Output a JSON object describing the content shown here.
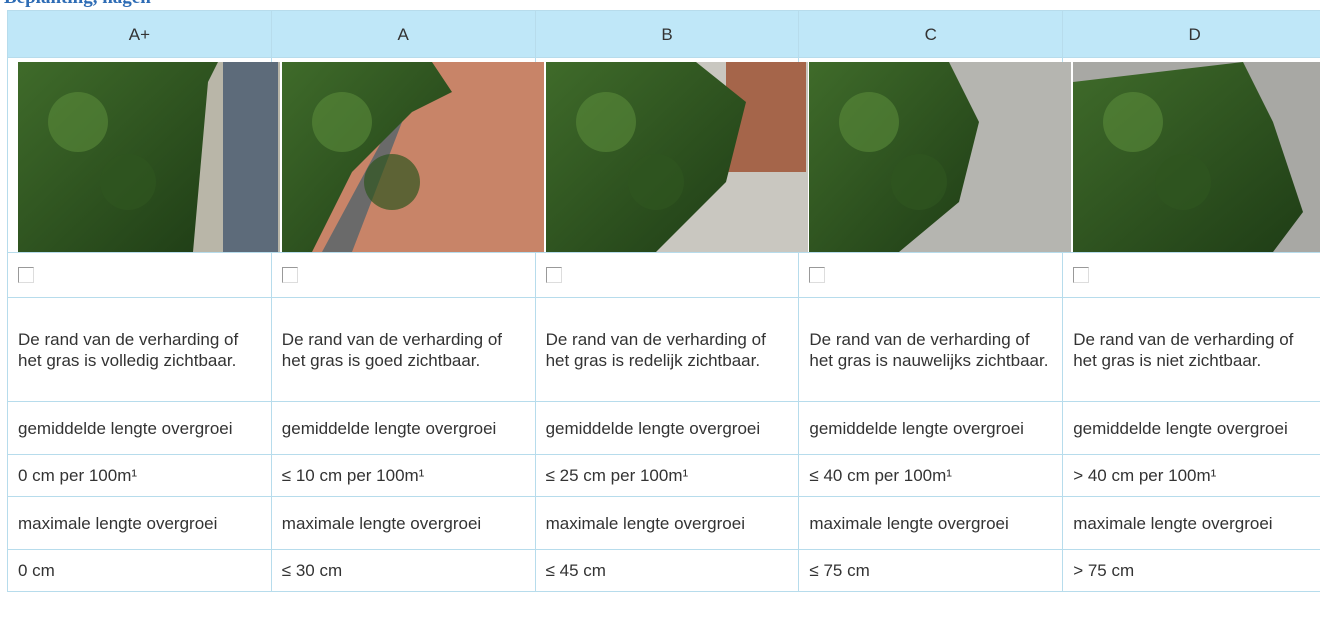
{
  "header": {
    "title": "Beplanting, hagen"
  },
  "table": {
    "columns": [
      "A+",
      "A",
      "B",
      "C",
      "D"
    ],
    "rows": [
      [
        "De rand van de verharding of het gras is volledig zichtbaar.",
        "De rand van de verharding of het gras is goed zichtbaar.",
        "De rand van de verharding of het gras is redelijk zichtbaar.",
        "De rand van de verharding of het gras is nauwelijks zichtbaar.",
        "De rand van de verharding of het gras is niet zichtbaar."
      ],
      [
        "gemiddelde lengte overgroei",
        "gemiddelde lengte overgroei",
        "gemiddelde lengte overgroei",
        "gemiddelde lengte overgroei",
        "gemiddelde lengte overgroei"
      ],
      [
        "0 cm per 100m¹",
        "≤ 10 cm per 100m¹",
        "≤ 25 cm per 100m¹",
        "≤ 40 cm per 100m¹",
        "> 40 cm per 100m¹"
      ],
      [
        "maximale lengte overgroei",
        "maximale lengte overgroei",
        "maximale lengte overgroei",
        "maximale lengte overgroei",
        "maximale lengte overgroei"
      ],
      [
        "0 cm",
        "≤ 30 cm",
        "≤ 45 cm",
        "≤ 75 cm",
        "> 75 cm"
      ]
    ]
  }
}
